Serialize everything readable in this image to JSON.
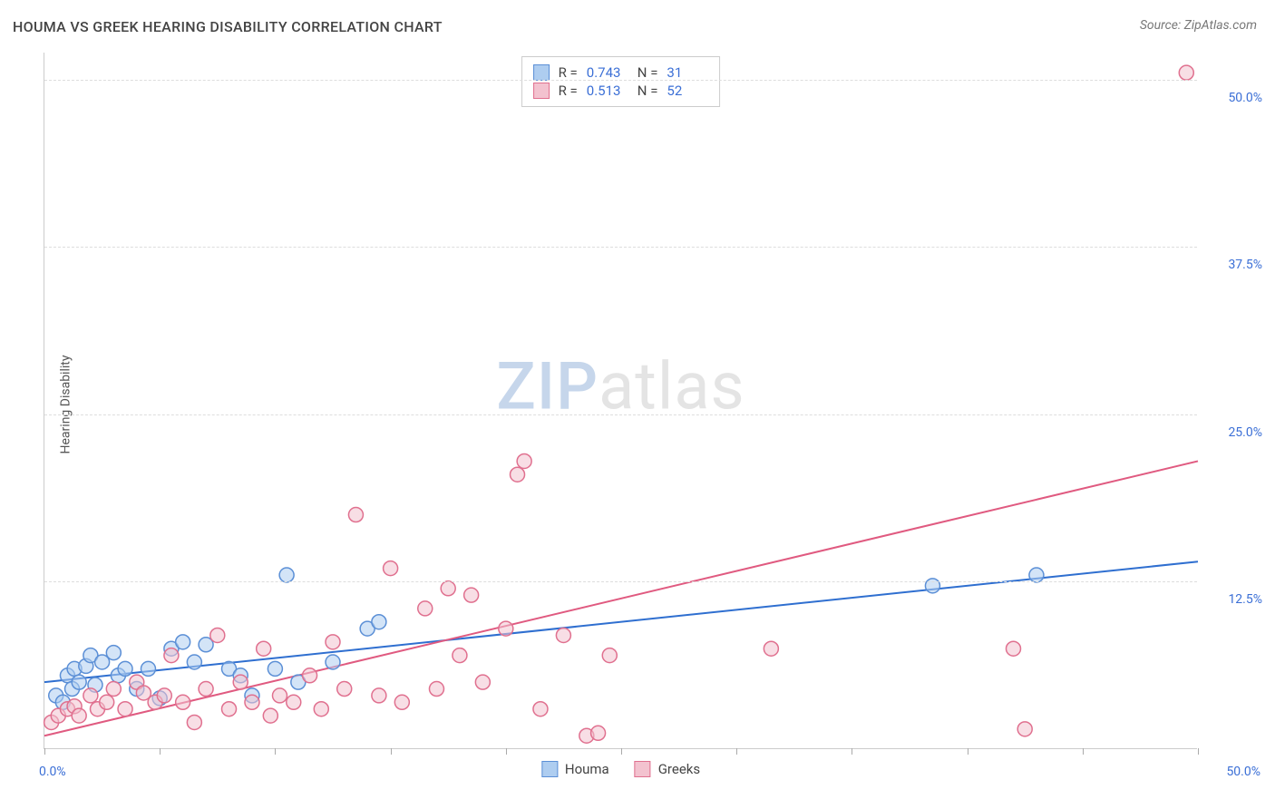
{
  "title": "HOUMA VS GREEK HEARING DISABILITY CORRELATION CHART",
  "source": "Source: ZipAtlas.com",
  "ylabel": "Hearing Disability",
  "watermark": {
    "zip": "ZIP",
    "atlas": "atlas"
  },
  "chart": {
    "type": "scatter",
    "xlim": [
      0,
      50
    ],
    "ylim": [
      0,
      52
    ],
    "x_ticks": [
      0,
      5,
      10,
      15,
      20,
      25,
      30,
      35,
      40,
      45,
      50
    ],
    "x_tick_labels": {
      "0": "0.0%",
      "50": "50.0%"
    },
    "y_gridlines": [
      12.5,
      25.0,
      37.5,
      50.0
    ],
    "y_tick_labels": [
      "12.5%",
      "25.0%",
      "37.5%",
      "50.0%"
    ],
    "background_color": "#ffffff",
    "grid_color": "#dddddd",
    "axis_color": "#cccccc",
    "tick_label_color": "#3b6fd6",
    "marker_radius": 8,
    "marker_stroke_width": 1.5,
    "line_width": 2,
    "series": [
      {
        "name": "Houma",
        "fill": "#aecdf0",
        "stroke": "#5b8fd6",
        "fill_opacity": 0.55,
        "line_color": "#2f6fd0",
        "R": "0.743",
        "N": "31",
        "trend": {
          "x1": 0,
          "y1": 5.0,
          "x2": 50,
          "y2": 14.0
        },
        "points": [
          [
            0.5,
            4.0
          ],
          [
            0.8,
            3.5
          ],
          [
            1.0,
            5.5
          ],
          [
            1.2,
            4.5
          ],
          [
            1.3,
            6.0
          ],
          [
            1.5,
            5.0
          ],
          [
            1.8,
            6.2
          ],
          [
            2.0,
            7.0
          ],
          [
            2.2,
            4.8
          ],
          [
            2.5,
            6.5
          ],
          [
            3.0,
            7.2
          ],
          [
            3.2,
            5.5
          ],
          [
            3.5,
            6.0
          ],
          [
            4.0,
            4.5
          ],
          [
            4.5,
            6.0
          ],
          [
            5.0,
            3.8
          ],
          [
            5.5,
            7.5
          ],
          [
            6.0,
            8.0
          ],
          [
            6.5,
            6.5
          ],
          [
            7.0,
            7.8
          ],
          [
            8.0,
            6.0
          ],
          [
            8.5,
            5.5
          ],
          [
            9.0,
            4.0
          ],
          [
            10.0,
            6.0
          ],
          [
            10.5,
            13.0
          ],
          [
            11.0,
            5.0
          ],
          [
            12.5,
            6.5
          ],
          [
            14.0,
            9.0
          ],
          [
            14.5,
            9.5
          ],
          [
            38.5,
            12.2
          ],
          [
            43.0,
            13.0
          ]
        ]
      },
      {
        "name": "Greeks",
        "fill": "#f3c2cf",
        "stroke": "#e0708f",
        "fill_opacity": 0.55,
        "line_color": "#e05a80",
        "R": "0.513",
        "N": "52",
        "trend": {
          "x1": 0,
          "y1": 1.0,
          "x2": 50,
          "y2": 21.5
        },
        "points": [
          [
            0.3,
            2.0
          ],
          [
            0.6,
            2.5
          ],
          [
            1.0,
            3.0
          ],
          [
            1.3,
            3.2
          ],
          [
            1.5,
            2.5
          ],
          [
            2.0,
            4.0
          ],
          [
            2.3,
            3.0
          ],
          [
            2.7,
            3.5
          ],
          [
            3.0,
            4.5
          ],
          [
            3.5,
            3.0
          ],
          [
            4.0,
            5.0
          ],
          [
            4.3,
            4.2
          ],
          [
            4.8,
            3.5
          ],
          [
            5.2,
            4.0
          ],
          [
            5.5,
            7.0
          ],
          [
            6.0,
            3.5
          ],
          [
            6.5,
            2.0
          ],
          [
            7.0,
            4.5
          ],
          [
            7.5,
            8.5
          ],
          [
            8.0,
            3.0
          ],
          [
            8.5,
            5.0
          ],
          [
            9.0,
            3.5
          ],
          [
            9.5,
            7.5
          ],
          [
            9.8,
            2.5
          ],
          [
            10.2,
            4.0
          ],
          [
            10.8,
            3.5
          ],
          [
            11.5,
            5.5
          ],
          [
            12.0,
            3.0
          ],
          [
            12.5,
            8.0
          ],
          [
            13.0,
            4.5
          ],
          [
            13.5,
            17.5
          ],
          [
            14.5,
            4.0
          ],
          [
            15.0,
            13.5
          ],
          [
            15.5,
            3.5
          ],
          [
            16.5,
            10.5
          ],
          [
            17.0,
            4.5
          ],
          [
            17.5,
            12.0
          ],
          [
            18.0,
            7.0
          ],
          [
            18.5,
            11.5
          ],
          [
            19.0,
            5.0
          ],
          [
            20.0,
            9.0
          ],
          [
            20.5,
            20.5
          ],
          [
            20.8,
            21.5
          ],
          [
            21.5,
            3.0
          ],
          [
            22.5,
            8.5
          ],
          [
            23.5,
            1.0
          ],
          [
            24.0,
            1.2
          ],
          [
            24.5,
            7.0
          ],
          [
            31.5,
            7.5
          ],
          [
            42.0,
            7.5
          ],
          [
            42.5,
            1.5
          ],
          [
            49.5,
            50.5
          ]
        ]
      }
    ],
    "legend_bottom": [
      "Houma",
      "Greeks"
    ]
  }
}
